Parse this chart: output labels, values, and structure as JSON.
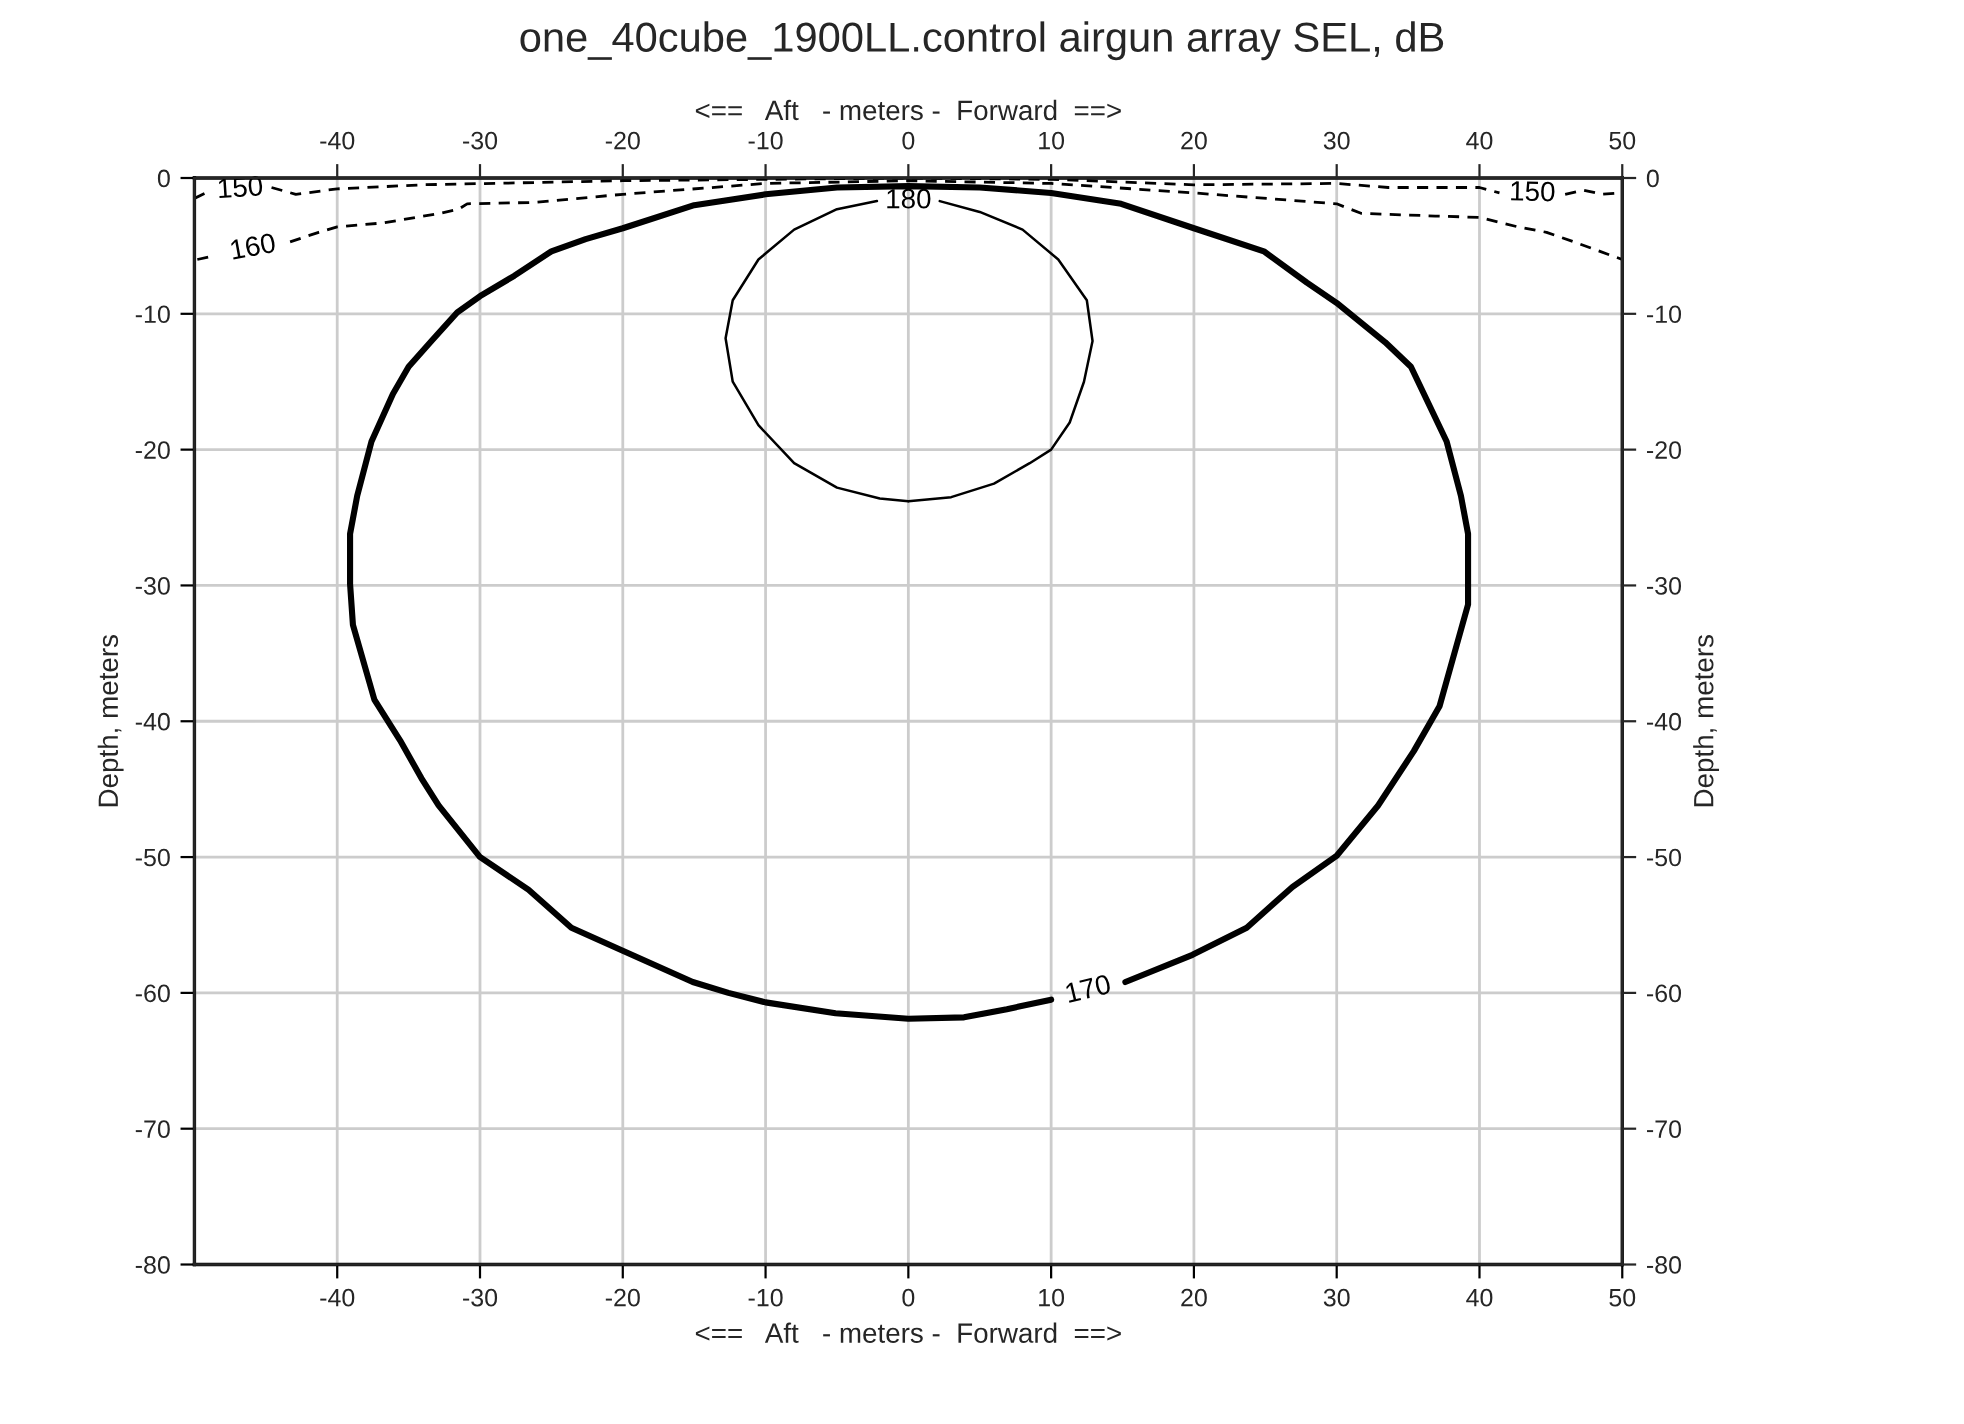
{
  "chart_data": {
    "type": "line",
    "title": "one_40cube_1900LL.control airgun array SEL, dB",
    "xlabel": "<==   Aft   - meters -  Forward  ==>",
    "x2label": "<==   Aft   - meters -  Forward  ==>",
    "ylabel": "Depth, meters",
    "y2label": "Depth, meters",
    "xlim": [
      -50,
      50
    ],
    "xticks": [
      -40,
      -30,
      -20,
      -10,
      0,
      10,
      20,
      30,
      40,
      50
    ],
    "x2lim": [
      -50,
      50
    ],
    "x2ticks": [
      -40,
      -30,
      -20,
      -10,
      0,
      10,
      20,
      30,
      40,
      50
    ],
    "ylim": [
      -80,
      0
    ],
    "yticks": [
      0,
      -10,
      -20,
      -30,
      -40,
      -50,
      -60,
      -70,
      -80
    ],
    "y2lim": [
      -80,
      0
    ],
    "y2ticks": [
      0,
      -10,
      -20,
      -30,
      -40,
      -50,
      -60,
      -70,
      -80
    ],
    "grid": true,
    "series": [
      {
        "name": "150",
        "color": "#000000",
        "line_style": "dashed",
        "x": [
          -50,
          -49,
          null,
          -44.6,
          -42.9,
          -40,
          -34,
          -20,
          0,
          10,
          20,
          30,
          33.6,
          40,
          41.4,
          null,
          46,
          47.3,
          48.6,
          50
        ],
        "values": [
          -1.5,
          -1,
          null,
          -0.7,
          -1.2,
          -0.8,
          -0.5,
          -0.2,
          0,
          -0.1,
          -0.5,
          -0.4,
          -0.7,
          -0.7,
          -1.1,
          null,
          -1.2,
          -0.9,
          -1.2,
          -1.1
        ]
      },
      {
        "name": "160",
        "color": "#000000",
        "line_style": "dashed",
        "x": [
          -49.8,
          -48.5,
          null,
          -43.3,
          -41.3,
          -40,
          -36.7,
          -32.8,
          -31.5,
          -30.9,
          -26.3,
          -20,
          -10,
          0,
          10,
          20,
          30,
          31.7,
          36.9,
          40,
          42.7,
          44.7,
          46.6,
          50
        ],
        "values": [
          -6,
          -5.7,
          null,
          -4.7,
          -4,
          -3.6,
          -3.3,
          -2.6,
          -2.3,
          -1.9,
          -1.8,
          -1.2,
          -0.4,
          -0.2,
          -0.4,
          -1.1,
          -1.9,
          -2.6,
          -2.8,
          -2.9,
          -3.6,
          -4,
          -4.7,
          -6
        ]
      },
      {
        "name": "170",
        "color": "#000000",
        "line_style": "solid",
        "x": [
          15.2,
          19.9,
          23.7,
          26.9,
          30,
          32.9,
          35.4,
          37.2,
          38.4,
          39.2,
          39.2,
          38.7,
          37.7,
          35.2,
          33.4,
          30,
          27.9,
          24.9,
          20,
          14.9,
          10,
          5,
          0,
          -5,
          -10,
          -15,
          -20,
          -22.6,
          -25,
          -27.6,
          -30,
          -31.6,
          -33.4,
          -35,
          -36.1,
          -37.6,
          -38.6,
          -39.1,
          -39.1,
          -38.9,
          -37.4,
          -35.6,
          -34.1,
          -32.9,
          -30,
          -26.6,
          -23.6,
          -20,
          -15.1,
          -12.6,
          -10,
          -5.1,
          0,
          3.9,
          6.9,
          10,
          null,
          15.2
        ],
        "values": [
          -59.2,
          -57.2,
          -55.2,
          -52.2,
          -49.9,
          -46.2,
          -42.2,
          -38.9,
          -34.4,
          -31.4,
          -26.2,
          -23.4,
          -19.4,
          -13.9,
          -12.1,
          -9.2,
          -7.7,
          -5.4,
          -3.7,
          -1.9,
          -1.1,
          -0.7,
          -0.6,
          -0.7,
          -1.2,
          -2,
          -3.7,
          -4.5,
          -5.4,
          -7.2,
          -8.7,
          -9.9,
          -12,
          -13.9,
          -15.9,
          -19.4,
          -23.4,
          -26.2,
          -29.9,
          -32.9,
          -38.4,
          -41.4,
          -44.2,
          -46.2,
          -50,
          -52.4,
          -55.2,
          -56.9,
          -59.2,
          -60,
          -60.7,
          -61.5,
          -61.9,
          -61.8,
          -61.2,
          -60.5,
          null,
          -59.2
        ]
      },
      {
        "name": "180",
        "color": "#000000",
        "line_style": "solid",
        "x": [
          0,
          3,
          6,
          8.5,
          10,
          11.3,
          12.3,
          12.9,
          12.5,
          10.5,
          8,
          5,
          2.2,
          null,
          -2.2,
          -5,
          -8,
          -10.5,
          -12.3,
          -12.8,
          -12.3,
          -10.5,
          -8,
          -5,
          -2,
          0
        ],
        "values": [
          -23.8,
          -23.5,
          -22.5,
          -21,
          -20,
          -18,
          -15,
          -12,
          -9,
          -6,
          -3.8,
          -2.5,
          -1.7,
          null,
          -1.7,
          -2.3,
          -3.8,
          -6,
          -9,
          -11.8,
          -15,
          -18.2,
          -21,
          -22.8,
          -23.6,
          -23.8
        ]
      }
    ]
  }
}
